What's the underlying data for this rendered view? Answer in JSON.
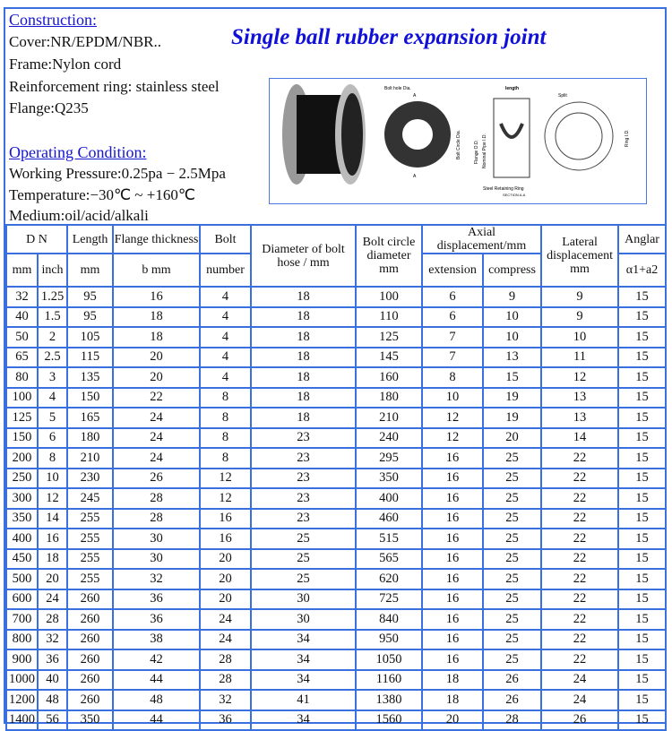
{
  "title": "Single ball rubber expansion joint",
  "construction": {
    "heading": "Construction:",
    "lines": [
      "Cover:NR/EPDM/NBR..",
      "Frame:Nylon cord",
      "Reinforcement ring: stainless steel",
      "Flange:Q235"
    ]
  },
  "operating": {
    "heading": "Operating Condition:",
    "lines": [
      "Working Pressure:0.25pa − 2.5Mpa",
      "Temperature:−30℃ ~ +160℃",
      "Medium:oil/acid/alkali"
    ]
  },
  "diagram": {
    "labels": [
      "Bolt hole Dia.",
      "length",
      "Split",
      "Bolt Circle Dia.",
      "Flange O.D.",
      "Nominal Pipe I.D.",
      "Ring I.D.",
      "Steel Retaining Ring",
      "SECTION A-A",
      "A",
      "A"
    ]
  },
  "table": {
    "header1": [
      "D N",
      "Length",
      "Flange thickness",
      "Bolt",
      "Diameter of bolt hose / mm",
      "Bolt circle diameter mm",
      "Axial displacement/mm",
      "Lateral displacement mm",
      "Anglar"
    ],
    "header2": [
      "mm",
      "inch",
      "mm",
      "b mm",
      "number",
      "extension",
      "compress",
      "α1+a2"
    ],
    "rows": [
      [
        "32",
        "1.25",
        "95",
        "16",
        "4",
        "18",
        "100",
        "6",
        "9",
        "9",
        "15"
      ],
      [
        "40",
        "1.5",
        "95",
        "18",
        "4",
        "18",
        "110",
        "6",
        "10",
        "9",
        "15"
      ],
      [
        "50",
        "2",
        "105",
        "18",
        "4",
        "18",
        "125",
        "7",
        "10",
        "10",
        "15"
      ],
      [
        "65",
        "2.5",
        "115",
        "20",
        "4",
        "18",
        "145",
        "7",
        "13",
        "11",
        "15"
      ],
      [
        "80",
        "3",
        "135",
        "20",
        "4",
        "18",
        "160",
        "8",
        "15",
        "12",
        "15"
      ],
      [
        "100",
        "4",
        "150",
        "22",
        "8",
        "18",
        "180",
        "10",
        "19",
        "13",
        "15"
      ],
      [
        "125",
        "5",
        "165",
        "24",
        "8",
        "18",
        "210",
        "12",
        "19",
        "13",
        "15"
      ],
      [
        "150",
        "6",
        "180",
        "24",
        "8",
        "23",
        "240",
        "12",
        "20",
        "14",
        "15"
      ],
      [
        "200",
        "8",
        "210",
        "24",
        "8",
        "23",
        "295",
        "16",
        "25",
        "22",
        "15"
      ],
      [
        "250",
        "10",
        "230",
        "26",
        "12",
        "23",
        "350",
        "16",
        "25",
        "22",
        "15"
      ],
      [
        "300",
        "12",
        "245",
        "28",
        "12",
        "23",
        "400",
        "16",
        "25",
        "22",
        "15"
      ],
      [
        "350",
        "14",
        "255",
        "28",
        "16",
        "23",
        "460",
        "16",
        "25",
        "22",
        "15"
      ],
      [
        "400",
        "16",
        "255",
        "30",
        "16",
        "25",
        "515",
        "16",
        "25",
        "22",
        "15"
      ],
      [
        "450",
        "18",
        "255",
        "30",
        "20",
        "25",
        "565",
        "16",
        "25",
        "22",
        "15"
      ],
      [
        "500",
        "20",
        "255",
        "32",
        "20",
        "25",
        "620",
        "16",
        "25",
        "22",
        "15"
      ],
      [
        "600",
        "24",
        "260",
        "36",
        "20",
        "30",
        "725",
        "16",
        "25",
        "22",
        "15"
      ],
      [
        "700",
        "28",
        "260",
        "36",
        "24",
        "30",
        "840",
        "16",
        "25",
        "22",
        "15"
      ],
      [
        "800",
        "32",
        "260",
        "38",
        "24",
        "34",
        "950",
        "16",
        "25",
        "22",
        "15"
      ],
      [
        "900",
        "36",
        "260",
        "42",
        "28",
        "34",
        "1050",
        "16",
        "25",
        "22",
        "15"
      ],
      [
        "1000",
        "40",
        "260",
        "44",
        "28",
        "34",
        "1160",
        "18",
        "26",
        "24",
        "15"
      ],
      [
        "1200",
        "48",
        "260",
        "48",
        "32",
        "41",
        "1380",
        "18",
        "26",
        "24",
        "15"
      ],
      [
        "1400",
        "56",
        "350",
        "44",
        "36",
        "34",
        "1560",
        "20",
        "28",
        "26",
        "15"
      ]
    ]
  }
}
